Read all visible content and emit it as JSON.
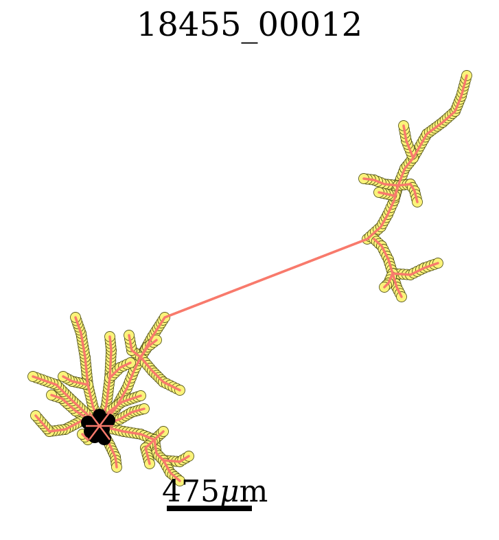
{
  "title": "18455_00012",
  "scale": {
    "value": "475",
    "mu": "μ",
    "unit": "m"
  },
  "colors": {
    "edge": "#f87a6c",
    "node_fill": "#fbf37a",
    "node_stroke": "#5a5a1e",
    "soma": "#000000"
  }
}
